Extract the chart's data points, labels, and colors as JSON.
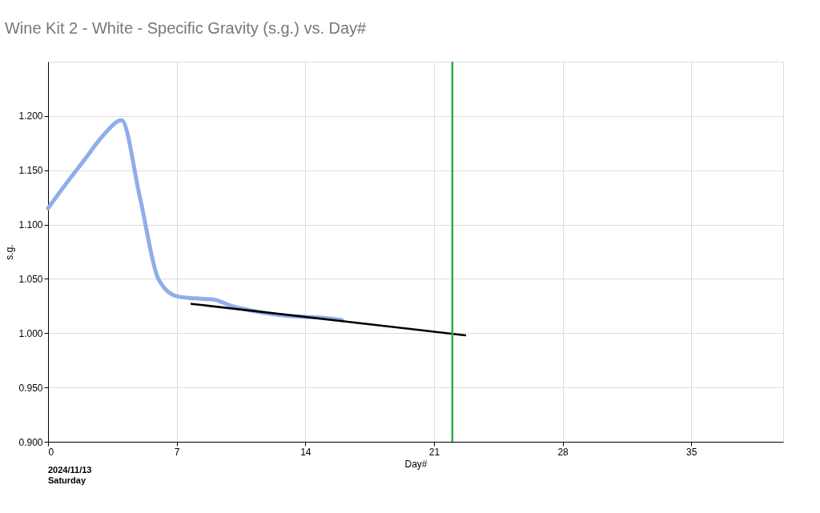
{
  "chart_data": {
    "type": "line",
    "title": "Wine Kit 2 - White - Specific Gravity (s.g.) vs. Day#",
    "xlabel": "Day#",
    "ylabel": "s.g.",
    "xlim": [
      0,
      40
    ],
    "xticks": [
      0,
      7,
      14,
      21,
      28,
      35
    ],
    "ylim": [
      0.9,
      1.25
    ],
    "yticks": [
      {
        "value": 0.9,
        "label": "0.900"
      },
      {
        "value": 0.95,
        "label": "0.950"
      },
      {
        "value": 1.0,
        "label": "1.000"
      },
      {
        "value": 1.05,
        "label": "1.050"
      },
      {
        "value": 1.1,
        "label": "1.100"
      },
      {
        "value": 1.15,
        "label": "1.150"
      },
      {
        "value": 1.2,
        "label": "1.200"
      }
    ],
    "grid": true,
    "marker": "none",
    "line_style": "solid",
    "series": [
      {
        "type": "line",
        "color": "#8faee8",
        "x": [
          0,
          1,
          2,
          3,
          4,
          5,
          6,
          7,
          8,
          9,
          10,
          11,
          12,
          13,
          14,
          15,
          16
        ],
        "values": [
          1.115,
          1.138,
          1.16,
          1.182,
          1.196,
          1.125,
          1.05,
          1.034,
          1.032,
          1.031,
          1.025,
          1.021,
          1.018,
          1.016,
          1.015,
          1.014,
          1.012
        ]
      },
      {
        "type": "line",
        "color": "#000000",
        "x": [
          7.8,
          22.7
        ],
        "values": [
          1.027,
          0.998
        ]
      }
    ],
    "ref_lines": [
      {
        "axis": "x",
        "value": 22,
        "label": null,
        "color": "#2eaa4a"
      }
    ],
    "annotations": [
      "2024/11/13\nSaturday"
    ]
  }
}
